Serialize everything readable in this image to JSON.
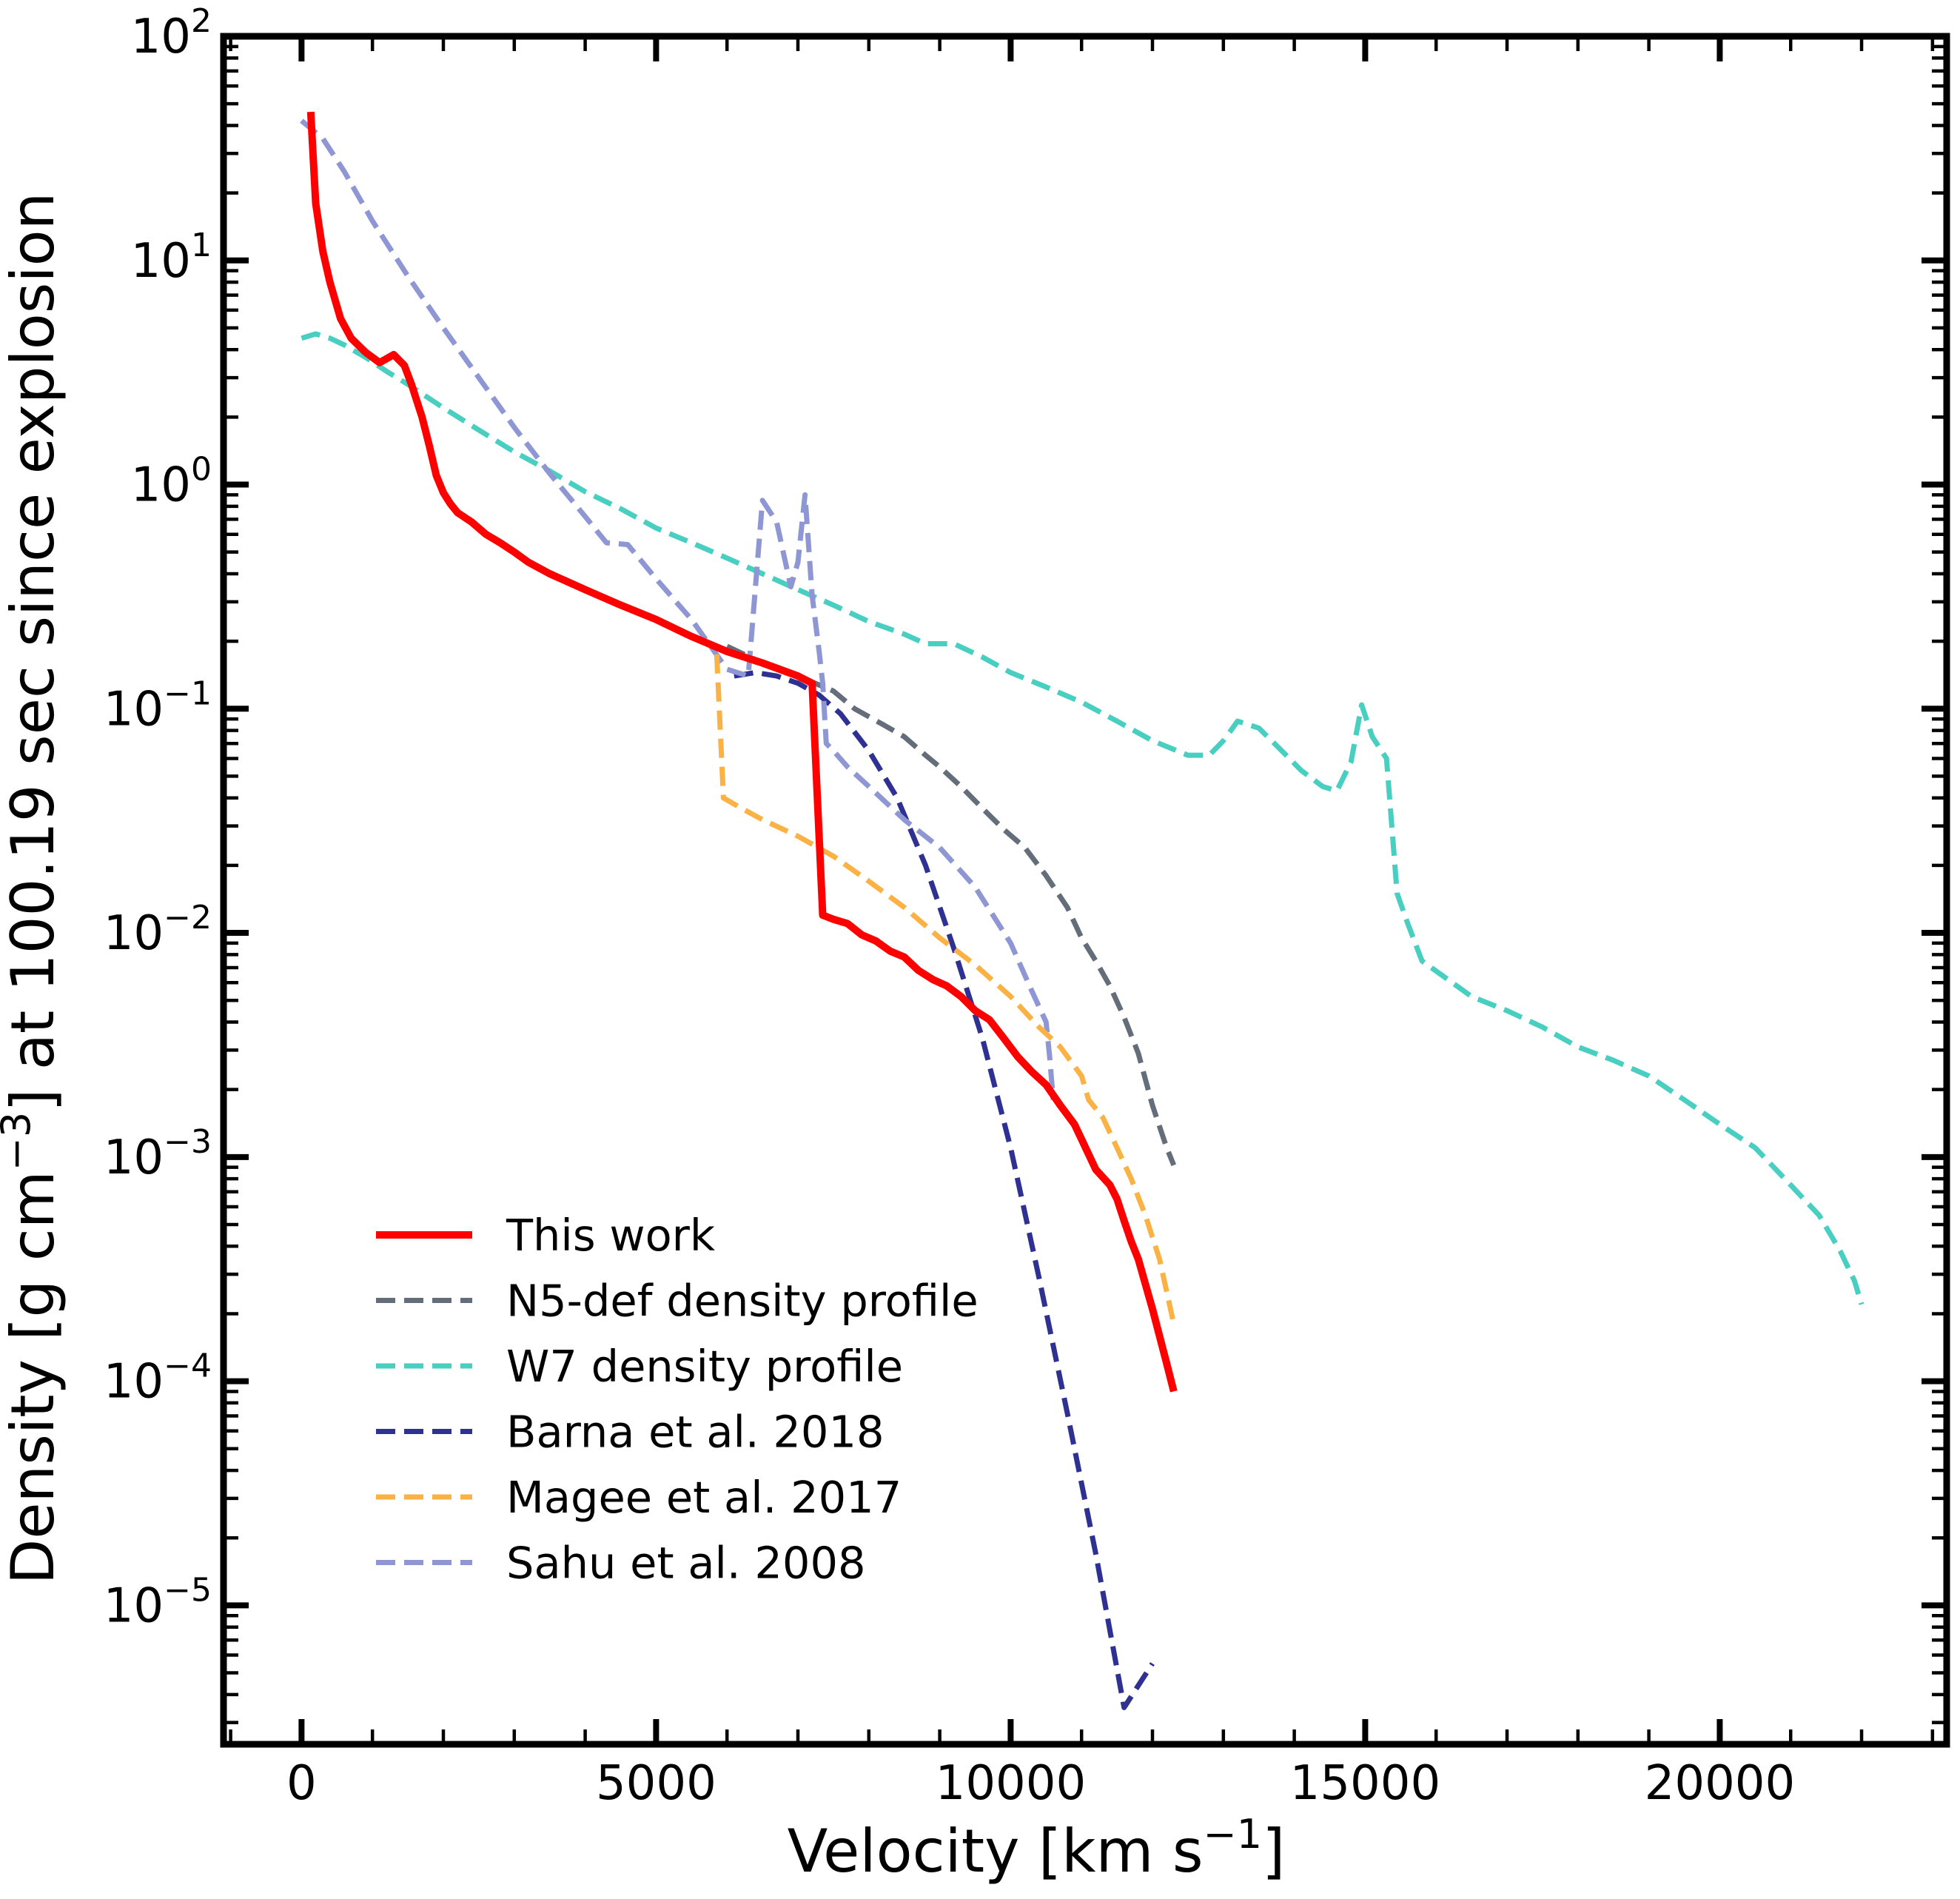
{
  "chart_data": {
    "type": "line",
    "title": "",
    "xlabel": "Velocity [km s",
    "xlabel_sup": "−1",
    "xlabel_end": "]",
    "ylabel": "Density [g cm",
    "ylabel_sup": "−3",
    "ylabel_end": "] at 100.19 sec since explosion",
    "yscale": "log",
    "xlim": [
      -1100,
      23200
    ],
    "ylim": [
      2.4e-06,
      100
    ],
    "x_ticks": [
      {
        "value": 0,
        "label": "0"
      },
      {
        "value": 5000,
        "label": "5000"
      },
      {
        "value": 10000,
        "label": "10000"
      },
      {
        "value": 15000,
        "label": "15000"
      },
      {
        "value": 20000,
        "label": "20000"
      }
    ],
    "y_ticks": [
      {
        "value": 100,
        "base": "10",
        "exp": "2"
      },
      {
        "value": 10,
        "base": "10",
        "exp": "1"
      },
      {
        "value": 1,
        "base": "10",
        "exp": "0"
      },
      {
        "value": 0.1,
        "base": "10",
        "exp": "−1"
      },
      {
        "value": 0.01,
        "base": "10",
        "exp": "−2"
      },
      {
        "value": 0.001,
        "base": "10",
        "exp": "−3"
      },
      {
        "value": 0.0001,
        "base": "10",
        "exp": "−4"
      },
      {
        "value": 1e-05,
        "base": "10",
        "exp": "−5"
      }
    ],
    "legend_position": "lower-left",
    "series": [
      {
        "name": "This work",
        "color": "#ff0000",
        "style": "solid",
        "x": [
          130,
          200,
          300,
          400,
          550,
          700,
          900,
          1100,
          1300,
          1450,
          1550,
          1700,
          1800,
          1900,
          2000,
          2100,
          2200,
          2400,
          2600,
          2800,
          3000,
          3200,
          3500,
          4000,
          4500,
          5000,
          5500,
          6000,
          6500,
          7000,
          7200,
          7350,
          7500,
          7700,
          7900,
          8100,
          8300,
          8500,
          8700,
          8900,
          9100,
          9300,
          9500,
          9700,
          9900,
          10100,
          10300,
          10500,
          10700,
          10900,
          11000,
          11200,
          11400,
          11500,
          11600,
          11700,
          11800,
          12000,
          12200,
          12300
        ],
        "y": [
          46,
          18,
          11,
          8,
          5.5,
          4.5,
          3.9,
          3.5,
          3.8,
          3.4,
          2.8,
          2.0,
          1.5,
          1.1,
          0.92,
          0.82,
          0.75,
          0.68,
          0.6,
          0.55,
          0.5,
          0.45,
          0.4,
          0.34,
          0.29,
          0.25,
          0.21,
          0.18,
          0.16,
          0.14,
          0.13,
          0.012,
          0.0115,
          0.011,
          0.0098,
          0.0092,
          0.0083,
          0.0078,
          0.0068,
          0.0062,
          0.0058,
          0.0052,
          0.0045,
          0.0041,
          0.0034,
          0.0028,
          0.0024,
          0.0021,
          0.0017,
          0.0014,
          0.0012,
          0.00088,
          0.00075,
          0.00065,
          0.00052,
          0.00042,
          0.00035,
          0.00021,
          0.00012,
          9e-05
        ]
      },
      {
        "name": "N5-def density profile",
        "color": "#646e7a",
        "style": "dashed",
        "x": [
          6000,
          6500,
          7000,
          7500,
          7800,
          8200,
          8500,
          8800,
          9000,
          9300,
          9600,
          9900,
          10200,
          10500,
          10800,
          11000,
          11200,
          11400,
          11600,
          11800,
          12000,
          12200,
          12300
        ],
        "y": [
          0.19,
          0.16,
          0.14,
          0.12,
          0.1,
          0.085,
          0.075,
          0.062,
          0.055,
          0.045,
          0.036,
          0.029,
          0.024,
          0.018,
          0.013,
          0.0095,
          0.0075,
          0.0058,
          0.0042,
          0.0029,
          0.0017,
          0.0011,
          0.00092
        ]
      },
      {
        "name": "W7 density profile",
        "color": "#48cfc1",
        "style": "dashed",
        "x": [
          0,
          200,
          400,
          600,
          900,
          1200,
          1500,
          2000,
          2500,
          3000,
          3500,
          4000,
          4500,
          5000,
          5500,
          6000,
          6500,
          7000,
          7500,
          8000,
          8500,
          8800,
          9200,
          9600,
          10000,
          10500,
          11000,
          11500,
          12000,
          12500,
          12800,
          13000,
          13200,
          13500,
          13800,
          14100,
          14400,
          14600,
          14800,
          14950,
          15100,
          15300,
          15450,
          15600,
          15800,
          16500,
          17000,
          17500,
          18000,
          18500,
          19000,
          19500,
          20000,
          20500,
          21000,
          21400,
          21700,
          21900,
          22000
        ],
        "y": [
          4.5,
          4.7,
          4.5,
          4.2,
          3.7,
          3.2,
          2.8,
          2.2,
          1.75,
          1.4,
          1.15,
          0.93,
          0.78,
          0.64,
          0.55,
          0.47,
          0.4,
          0.34,
          0.29,
          0.245,
          0.215,
          0.195,
          0.195,
          0.17,
          0.145,
          0.125,
          0.107,
          0.088,
          0.072,
          0.062,
          0.062,
          0.072,
          0.088,
          0.082,
          0.066,
          0.053,
          0.045,
          0.043,
          0.058,
          0.104,
          0.075,
          0.06,
          0.015,
          0.011,
          0.0075,
          0.0052,
          0.0045,
          0.0038,
          0.0031,
          0.0027,
          0.0023,
          0.0018,
          0.0014,
          0.0011,
          0.00075,
          0.00055,
          0.00038,
          0.00028,
          0.00022
        ]
      },
      {
        "name": "Barna et al. 2018",
        "color": "#2e3192",
        "style": "dashed",
        "x": [
          6100,
          6400,
          6700,
          7000,
          7300,
          7600,
          8000,
          8400,
          8800,
          9200,
          9600,
          10000,
          10400,
          10800,
          11200,
          11600,
          12000
        ],
        "y": [
          0.14,
          0.145,
          0.14,
          0.13,
          0.115,
          0.095,
          0.065,
          0.04,
          0.02,
          0.0085,
          0.0034,
          0.0011,
          0.00029,
          7.2e-05,
          1.7e-05,
          3.5e-06,
          5.5e-06
        ]
      },
      {
        "name": "Magee et al. 2017",
        "color": "#fbb244",
        "style": "dashed",
        "x": [
          130,
          200,
          300,
          400,
          550,
          700,
          900,
          1100,
          1300,
          1450,
          1550,
          1700,
          1800,
          1900,
          2000,
          2100,
          2200,
          2400,
          2600,
          2800,
          3000,
          3200,
          3500,
          4000,
          4500,
          5000,
          5500,
          5850,
          5950,
          6200,
          6500,
          7000,
          7500,
          8000,
          8500,
          9000,
          9500,
          10000,
          10400,
          10700,
          11000,
          11100,
          11300,
          11500,
          11700,
          11900,
          12100,
          12300
        ],
        "y": [
          46,
          18,
          11,
          8,
          5.5,
          4.5,
          3.9,
          3.5,
          3.8,
          3.4,
          2.8,
          2.0,
          1.5,
          1.1,
          0.92,
          0.82,
          0.75,
          0.68,
          0.6,
          0.55,
          0.5,
          0.45,
          0.4,
          0.34,
          0.29,
          0.25,
          0.21,
          0.19,
          0.04,
          0.036,
          0.032,
          0.027,
          0.022,
          0.017,
          0.013,
          0.0095,
          0.0072,
          0.0052,
          0.0038,
          0.0031,
          0.0023,
          0.0018,
          0.0015,
          0.0011,
          0.0008,
          0.00055,
          0.00035,
          0.00018
        ]
      },
      {
        "name": "Sahu et al. 2008",
        "color": "#8e96d3",
        "style": "dashed",
        "x": [
          0,
          300,
          600,
          1000,
          1500,
          2000,
          2500,
          3000,
          3500,
          4000,
          4300,
          4600,
          5000,
          5500,
          6000,
          6300,
          6500,
          6700,
          6900,
          7000,
          7100,
          7200,
          7300,
          7350,
          7400,
          7500,
          7700,
          8000,
          8500,
          9000,
          9500,
          10000,
          10300,
          10500,
          10550,
          10600
        ],
        "y": [
          42,
          35,
          25,
          15,
          8.5,
          5.0,
          3.0,
          1.8,
          1.12,
          0.72,
          0.55,
          0.54,
          0.38,
          0.25,
          0.15,
          0.14,
          0.85,
          0.68,
          0.35,
          0.45,
          0.9,
          0.32,
          0.18,
          0.13,
          0.07,
          0.065,
          0.055,
          0.045,
          0.032,
          0.024,
          0.016,
          0.009,
          0.0055,
          0.004,
          0.0028,
          0.0018
        ]
      }
    ]
  }
}
